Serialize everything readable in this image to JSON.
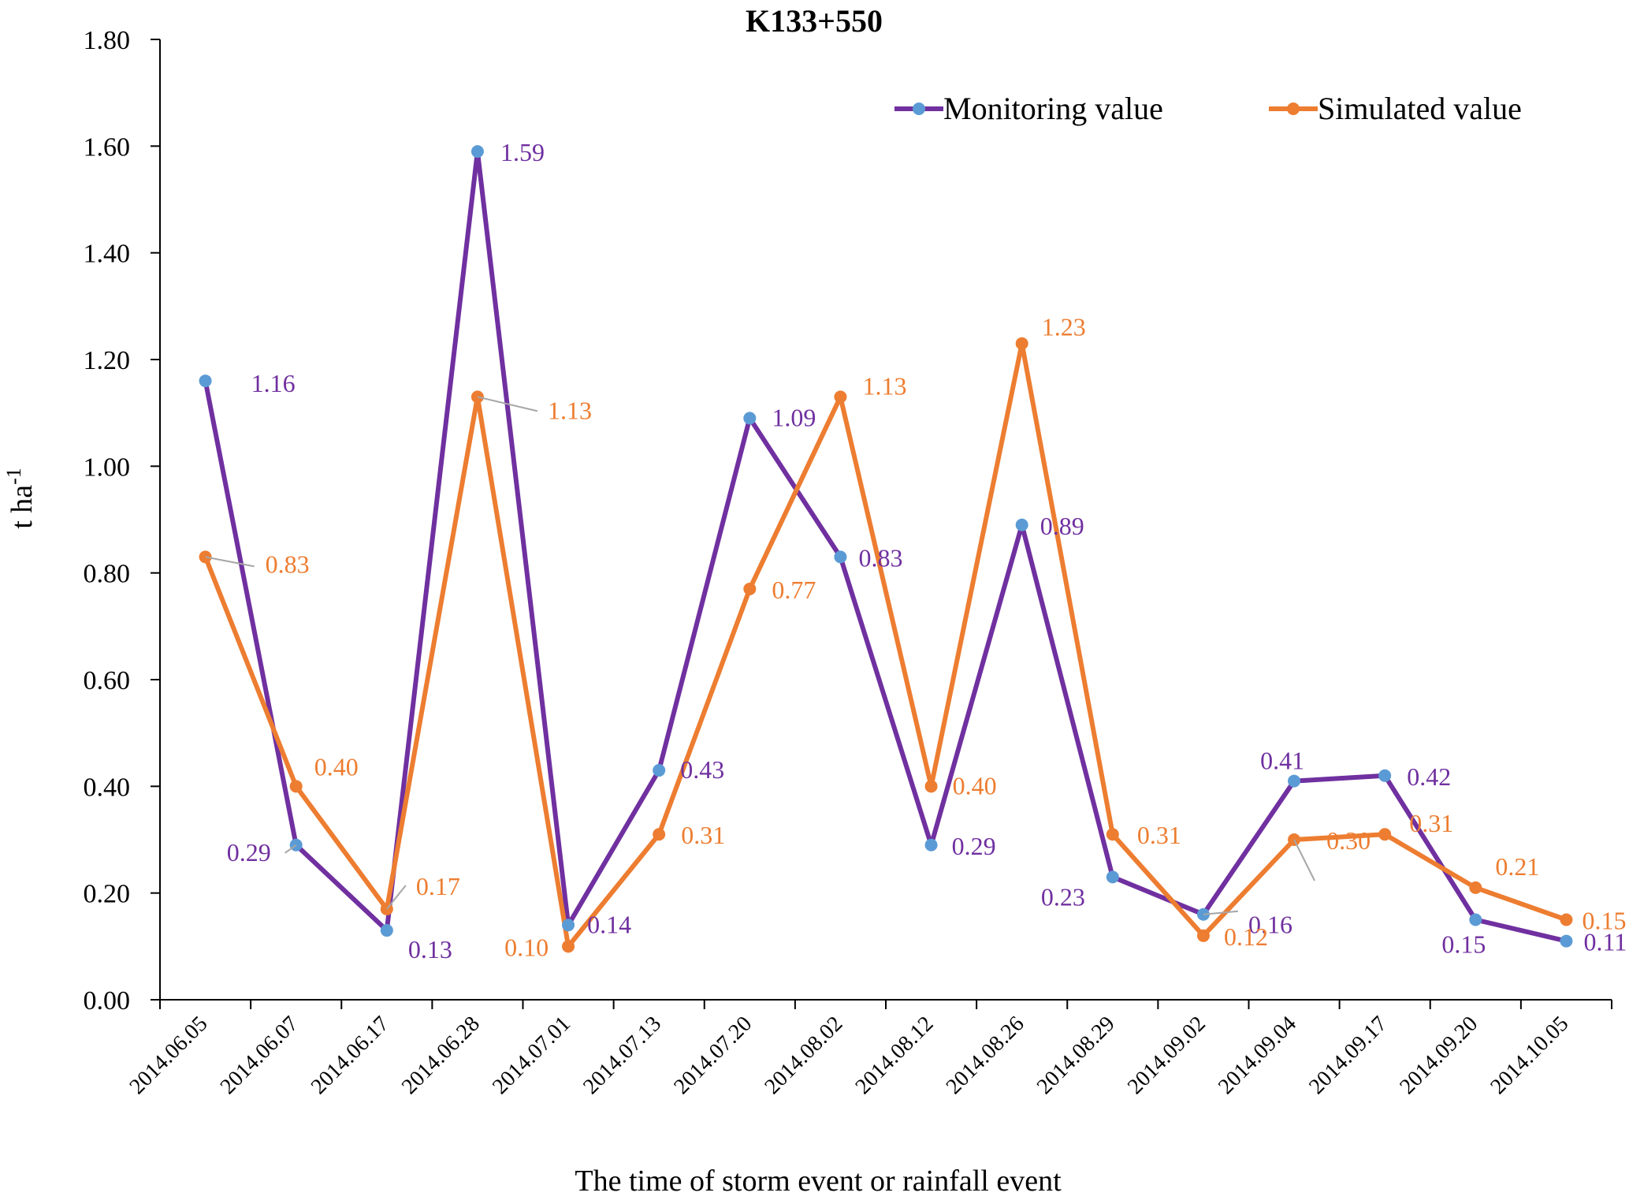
{
  "chart_data": {
    "type": "line",
    "title": "K133+550",
    "xlabel": "The time of storm event or rainfall event",
    "ylabel": "t ha",
    "ylabel_sup": "-1",
    "ylim": [
      0,
      1.8
    ],
    "ytick_values": [
      0,
      0.2,
      0.4,
      0.6,
      0.8,
      1.0,
      1.2,
      1.4,
      1.6,
      1.8
    ],
    "ytick_labels": [
      "0.00",
      "0.20",
      "0.40",
      "0.60",
      "0.80",
      "1.00",
      "1.20",
      "1.40",
      "1.60",
      "1.80"
    ],
    "categories": [
      "2014.06.05",
      "2014.06.07",
      "2014.06.17",
      "2014.06.28",
      "2014.07.01",
      "2014.07.13",
      "2014.07.20",
      "2014.08.02",
      "2014.08.12",
      "2014.08.26",
      "2014.08.29",
      "2014.09.02",
      "2014.09.04",
      "2014.09.17",
      "2014.09.20",
      "2014.10.05"
    ],
    "series": [
      {
        "name": "Monitoring value",
        "line_color": "#7030A0",
        "marker_color": "#5B9BD5",
        "label_color": "#7030A0",
        "values": [
          1.16,
          0.29,
          0.13,
          1.59,
          0.14,
          0.43,
          1.09,
          0.83,
          0.29,
          0.89,
          0.23,
          0.16,
          0.41,
          0.42,
          0.15,
          0.11
        ],
        "labels": [
          "1.16",
          "0.29",
          "0.13",
          "1.59",
          "0.14",
          "0.43",
          "1.09",
          "0.83",
          "0.29",
          "0.89",
          "0.23",
          "0.16",
          "0.41",
          "0.42",
          "0.15",
          "0.11"
        ]
      },
      {
        "name": "Simulated value",
        "line_color": "#ED7D31",
        "marker_color": "#ED7D31",
        "label_color": "#ED7D31",
        "values": [
          0.83,
          0.4,
          0.17,
          1.13,
          0.1,
          0.31,
          0.77,
          1.13,
          0.4,
          1.23,
          0.31,
          0.12,
          0.3,
          0.31,
          0.21,
          0.15
        ],
        "labels": [
          "0.83",
          "0.40",
          "0.17",
          "1.13",
          "0.10",
          "0.31",
          "0.77",
          "1.13",
          "0.40",
          "1.23",
          "0.31",
          "0.12",
          "0.30",
          "0.31",
          "0.21",
          "0.15"
        ]
      }
    ],
    "legend_position": "top-right",
    "grid": false
  }
}
